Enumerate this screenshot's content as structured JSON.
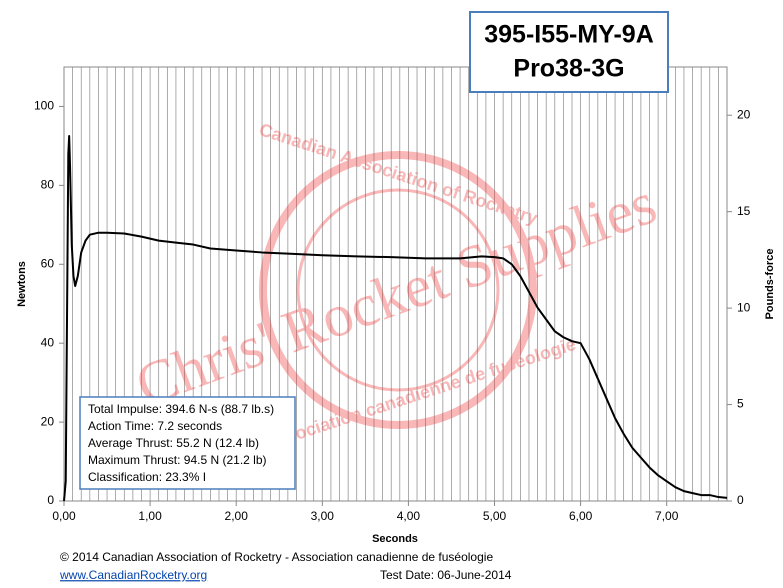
{
  "chart_data": {
    "type": "line",
    "title_lines": [
      "395-I55-MY-9A",
      "Pro38-3G"
    ],
    "xlabel": "Seconds",
    "ylabel": "Newtons",
    "y2label": "Pounds-force",
    "x": [
      0,
      0.02,
      0.04,
      0.05,
      0.06,
      0.07,
      0.09,
      0.11,
      0.13,
      0.16,
      0.2,
      0.25,
      0.3,
      0.4,
      0.5,
      0.7,
      0.9,
      1.1,
      1.3,
      1.5,
      1.7,
      2.0,
      2.3,
      2.6,
      3.0,
      3.4,
      3.8,
      4.2,
      4.6,
      4.85,
      5.0,
      5.1,
      5.2,
      5.3,
      5.4,
      5.5,
      5.6,
      5.7,
      5.8,
      5.9,
      6.0,
      6.05,
      6.1,
      6.2,
      6.3,
      6.4,
      6.5,
      6.6,
      6.7,
      6.8,
      6.9,
      7.0,
      7.1,
      7.2,
      7.3,
      7.4,
      7.5,
      7.6,
      7.7
    ],
    "values": [
      0,
      5,
      60,
      88,
      92.5,
      85,
      65,
      57,
      54.5,
      57,
      63,
      66,
      67.5,
      68,
      68,
      67.8,
      67,
      66,
      65.5,
      65,
      64,
      63.5,
      63,
      62.7,
      62.3,
      62,
      61.8,
      61.5,
      61.5,
      62,
      61.8,
      61.5,
      60,
      57,
      53,
      49,
      46,
      43,
      41.5,
      40.5,
      40,
      38,
      36,
      31,
      26,
      21,
      17,
      13.5,
      11,
      8.5,
      6.5,
      5,
      3.5,
      2.5,
      2,
      1.5,
      1.5,
      1,
      0.8
    ],
    "color": "#000000",
    "xlim": [
      0,
      7.7
    ],
    "xticks": [
      {
        "value": 0,
        "label": "0,00"
      },
      {
        "value": 1,
        "label": "1,00"
      },
      {
        "value": 2,
        "label": "2,00"
      },
      {
        "value": 3,
        "label": "3,00"
      },
      {
        "value": 4,
        "label": "4,00"
      },
      {
        "value": 5,
        "label": "5,00"
      },
      {
        "value": 6,
        "label": "6,00"
      },
      {
        "value": 7,
        "label": "7,00"
      }
    ],
    "xminorticks": [
      0.1,
      0.2,
      0.3,
      0.4,
      0.5,
      0.6,
      0.7,
      0.8,
      0.9,
      1.1,
      1.2,
      1.3,
      1.4,
      1.5,
      1.6,
      1.7,
      1.8,
      1.9,
      2.1,
      2.2,
      2.3,
      2.4,
      2.5,
      2.6,
      2.7,
      2.8,
      2.9,
      3.1,
      3.2,
      3.3,
      3.4,
      3.5,
      3.6,
      3.7,
      3.8,
      3.9,
      4.1,
      4.2,
      4.3,
      4.4,
      4.5,
      4.6,
      4.7,
      4.8,
      4.9,
      5.1,
      5.2,
      5.3,
      5.4,
      5.5,
      5.6,
      5.7,
      5.8,
      5.9,
      6.1,
      6.2,
      6.3,
      6.4,
      6.5,
      6.6,
      6.7,
      6.8,
      6.9,
      7.1,
      7.2,
      7.3,
      7.4,
      7.5,
      7.6
    ],
    "ylim": [
      0,
      110
    ],
    "yticks": [
      0,
      20,
      40,
      60,
      80,
      100
    ],
    "y2lim": [
      0,
      22.5
    ],
    "y2ticks": [
      0,
      5,
      10,
      15,
      20
    ],
    "grid": "x",
    "stats": [
      "Total Impulse: 394.6 N-s (88.7 lb.s)",
      "Action Time: 7.2 seconds",
      "Average Thrust: 55.2 N (12.4 lb)",
      "Maximum Thrust: 94.5 N (21.2 lb)",
      "Classification: 23.3% I"
    ],
    "watermark": [
      "Chris' Rocket Supplies",
      "Canadian Association of Rocketry",
      "Association canadienne de fuséologie"
    ],
    "footer": {
      "copyright": "© 2014 Canadian Association of Rocketry - Association canadienne de fuséologie",
      "link": "www.CanadianRocketry.org",
      "test_date": "Test  Date: 06-June-2014"
    }
  }
}
